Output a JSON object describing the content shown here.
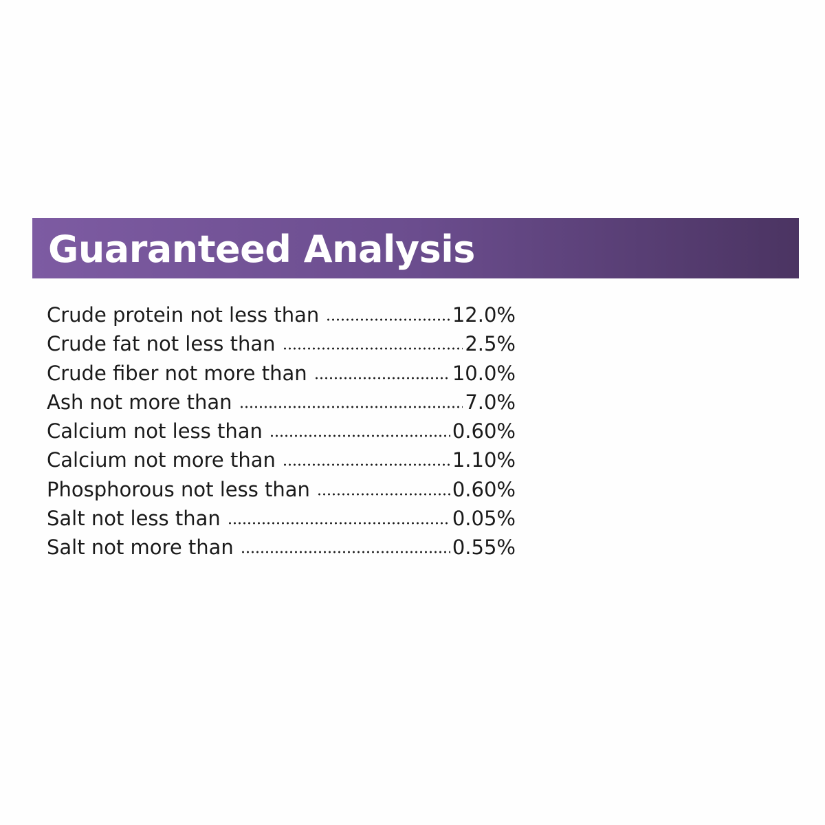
{
  "header": {
    "title": "Guaranteed Analysis"
  },
  "rows": [
    {
      "label": "Crude protein not less than",
      "value": "12.0%"
    },
    {
      "label": "Crude fat not less than",
      "value": "2.5%"
    },
    {
      "label": "Crude fiber not more than",
      "value": "10.0%"
    },
    {
      "label": "Ash not more than",
      "value": "7.0%"
    },
    {
      "label": "Calcium not less than",
      "value": "0.60%"
    },
    {
      "label": "Calcium not more than",
      "value": "1.10%"
    },
    {
      "label": "Phosphorous not less than",
      "value": "0.60%"
    },
    {
      "label": "Salt not less than",
      "value": "0.05%"
    },
    {
      "label": "Salt not more than",
      "value": "0.55%"
    }
  ]
}
